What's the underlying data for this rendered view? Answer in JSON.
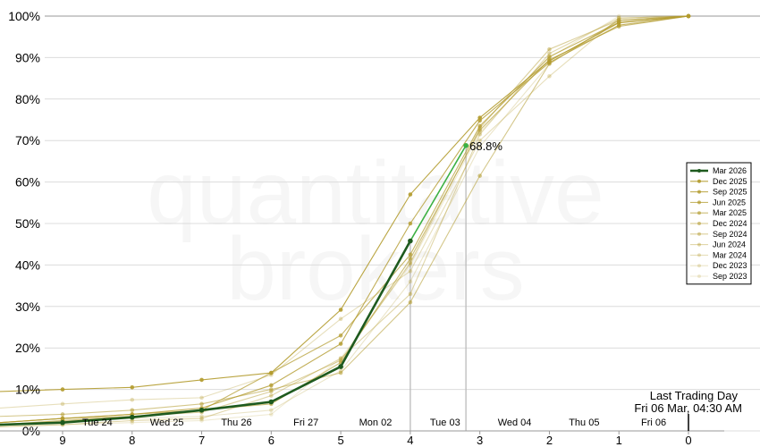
{
  "watermark": [
    "quantitative",
    "brokers"
  ],
  "annotation": {
    "line1": "Last Trading Day",
    "line2": "Fri 06 Mar, 04:30 AM"
  },
  "colors": {
    "primary": "#1e5a1e",
    "primary_segment": "#3cb043",
    "series_base": "#b39b2e"
  },
  "chart_data": {
    "type": "line",
    "xlim": [
      9.9,
      -0.5
    ],
    "ylim": [
      0,
      100
    ],
    "x_ticks": [
      9,
      8,
      7,
      6,
      5,
      4,
      3,
      2,
      1,
      0
    ],
    "y_ticks": [
      0,
      10,
      20,
      30,
      40,
      50,
      60,
      70,
      80,
      90,
      100
    ],
    "y_tick_labels": [
      "0%",
      "10%",
      "20%",
      "30%",
      "40%",
      "50%",
      "60%",
      "70%",
      "80%",
      "90%",
      "100%"
    ],
    "day_labels": [
      {
        "x": 8.5,
        "label": "Tue 24"
      },
      {
        "x": 7.5,
        "label": "Wed 25"
      },
      {
        "x": 6.5,
        "label": "Thu 26"
      },
      {
        "x": 5.5,
        "label": "Fri 27"
      },
      {
        "x": 4.5,
        "label": "Mon 02"
      },
      {
        "x": 3.5,
        "label": "Tue 03"
      },
      {
        "x": 2.5,
        "label": "Wed 04"
      },
      {
        "x": 1.5,
        "label": "Thu 05"
      },
      {
        "x": 0.5,
        "label": "Fri 06"
      }
    ],
    "vlines": [
      4,
      3.2
    ],
    "last_trading_x": 0,
    "legend_position": "right",
    "series": [
      {
        "name": "Mar 2026",
        "x": [
          9.9,
          9,
          8,
          7,
          6,
          5,
          4,
          3.2
        ],
        "y": [
          1.5,
          2,
          3.3,
          5,
          7,
          15.5,
          45.8,
          68.8
        ],
        "bold": true,
        "opacity": 1
      },
      {
        "name": "Dec 2025",
        "x": [
          9.9,
          9,
          8,
          7,
          6,
          5,
          4,
          3,
          2,
          1,
          0
        ],
        "y": [
          9.5,
          10,
          10.5,
          12.3,
          14,
          29.2,
          57,
          75.5,
          89.2,
          98.4,
          100
        ],
        "opacity": 0.9
      },
      {
        "name": "Sep 2025",
        "x": [
          9.9,
          9,
          8,
          7,
          6,
          5,
          4,
          3,
          2,
          1,
          0
        ],
        "y": [
          2,
          3,
          4,
          5.5,
          11,
          21,
          50,
          74.8,
          88.8,
          97.8,
          100
        ],
        "opacity": 0.8
      },
      {
        "name": "Jun 2025",
        "x": [
          9.9,
          9,
          8,
          7,
          6,
          5,
          4,
          3,
          2,
          1,
          0
        ],
        "y": [
          2,
          3,
          4,
          5,
          14,
          23,
          42.5,
          73.5,
          90.2,
          98.5,
          100
        ],
        "opacity": 0.72
      },
      {
        "name": "Mar 2025",
        "x": [
          9.9,
          9,
          8,
          7,
          6,
          5,
          4,
          3,
          2,
          1,
          0
        ],
        "y": [
          1.5,
          2.5,
          3.5,
          5,
          6.5,
          16.5,
          41.5,
          72.5,
          89.5,
          97.5,
          100
        ],
        "opacity": 0.64
      },
      {
        "name": "Dec 2024",
        "x": [
          9.9,
          9,
          8,
          7,
          6,
          5,
          4,
          3,
          2,
          1,
          0
        ],
        "y": [
          3.5,
          4,
          5,
          6.5,
          10,
          14,
          31,
          61.5,
          88.5,
          99,
          100
        ],
        "opacity": 0.56
      },
      {
        "name": "Sep 2024",
        "x": [
          9.9,
          9,
          8,
          7,
          6,
          5,
          4,
          3,
          2,
          1,
          0
        ],
        "y": [
          2,
          3,
          3.5,
          4.5,
          9.5,
          17,
          40.5,
          73,
          92,
          99,
          100
        ],
        "opacity": 0.48
      },
      {
        "name": "Jun 2024",
        "x": [
          9.9,
          9,
          8,
          7,
          6,
          5,
          4,
          3,
          2,
          1,
          0
        ],
        "y": [
          1,
          1.5,
          2.5,
          3,
          8.5,
          17.5,
          33,
          71.5,
          91,
          99.5,
          100
        ],
        "opacity": 0.4
      },
      {
        "name": "Mar 2024",
        "x": [
          9.9,
          9,
          8,
          7,
          6,
          5,
          4,
          3,
          2,
          1,
          0
        ],
        "y": [
          5.5,
          6.5,
          7.5,
          8,
          13.5,
          27,
          38.5,
          70,
          85.5,
          99.5,
          100
        ],
        "opacity": 0.32
      },
      {
        "name": "Dec 2023",
        "x": [
          9.9,
          9,
          8,
          7,
          6,
          5,
          4,
          3,
          2,
          1,
          0
        ],
        "y": [
          1.5,
          2.5,
          3,
          3.5,
          5,
          14.5,
          36,
          68.5,
          88.5,
          99,
          100
        ],
        "opacity": 0.26
      },
      {
        "name": "Sep 2023",
        "x": [
          9.9,
          9,
          8,
          7,
          6,
          5,
          4,
          3,
          2,
          1,
          0
        ],
        "y": [
          1,
          1.5,
          2,
          2.5,
          4,
          17.5,
          40,
          72,
          90,
          100,
          100
        ],
        "opacity": 0.2
      }
    ],
    "highlight_point": {
      "x": 3.2,
      "y": 68.8,
      "label": "68.8%"
    }
  }
}
